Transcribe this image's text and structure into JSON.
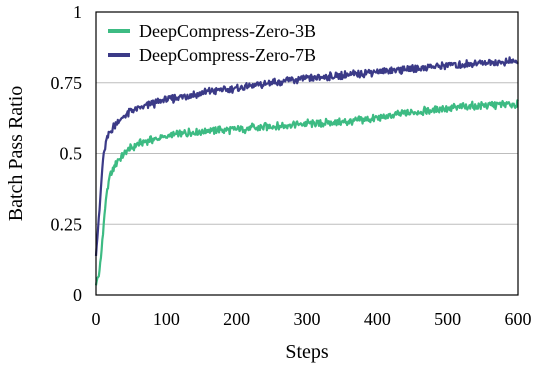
{
  "chart_data": {
    "type": "line",
    "title": "",
    "xlabel": "Steps",
    "ylabel": "Batch Pass Ratio",
    "xlim": [
      0,
      600
    ],
    "ylim": [
      0,
      1
    ],
    "x_ticks": [
      "0",
      "100",
      "200",
      "300",
      "400",
      "500",
      "600"
    ],
    "y_ticks": [
      "0",
      "0.25",
      "0.5",
      "0.75",
      "1"
    ],
    "grid": "horizontal",
    "legend_position": "top-left",
    "series": [
      {
        "name": "DeepCompress-Zero-3B",
        "color": "#3dbb83",
        "x": [
          0,
          5,
          10,
          15,
          20,
          30,
          40,
          50,
          60,
          80,
          100,
          120,
          150,
          200,
          250,
          300,
          350,
          400,
          450,
          500,
          550,
          600
        ],
        "y": [
          0.04,
          0.08,
          0.22,
          0.36,
          0.42,
          0.47,
          0.5,
          0.52,
          0.535,
          0.55,
          0.56,
          0.57,
          0.58,
          0.585,
          0.595,
          0.605,
          0.61,
          0.625,
          0.645,
          0.66,
          0.67,
          0.675
        ]
      },
      {
        "name": "DeepCompress-Zero-7B",
        "color": "#3b3a87",
        "x": [
          0,
          5,
          10,
          15,
          20,
          30,
          40,
          50,
          60,
          80,
          100,
          120,
          150,
          200,
          250,
          300,
          350,
          400,
          450,
          500,
          550,
          600
        ],
        "y": [
          0.15,
          0.3,
          0.48,
          0.55,
          0.58,
          0.61,
          0.63,
          0.65,
          0.66,
          0.675,
          0.69,
          0.7,
          0.715,
          0.73,
          0.75,
          0.765,
          0.775,
          0.79,
          0.8,
          0.81,
          0.82,
          0.825
        ]
      }
    ]
  }
}
